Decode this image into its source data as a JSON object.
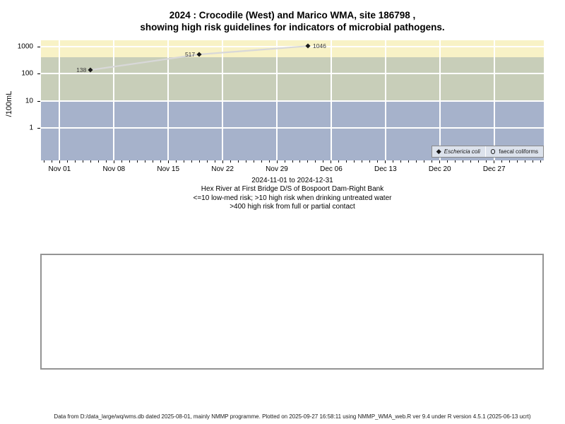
{
  "title": {
    "line1": "2024 : Crocodile (West) and Marico WMA, site 186798 ,",
    "line2": "showing high risk guidelines for indicators of microbial pathogens."
  },
  "chart_data": {
    "type": "line",
    "title": "2024 : Crocodile (West) and Marico WMA, site 186798, showing high risk guidelines for indicators of microbial pathogens.",
    "ylabel": "/100mL",
    "yscale": "log10",
    "ylim": [
      0.065,
      1710
    ],
    "ytick_values": [
      1000,
      100,
      10,
      1
    ],
    "xtick_labels": [
      "Nov 01",
      "Nov 08",
      "Nov 15",
      "Nov 22",
      "Nov 29",
      "Dec 06",
      "Dec 13",
      "Dec 20",
      "Dec 27"
    ],
    "xtick_days": [
      0,
      7,
      14,
      21,
      28,
      35,
      42,
      49,
      56
    ],
    "x_domain_days": [
      -2.4,
      62.4
    ],
    "minor_tick_every_days": 1,
    "grid": "on",
    "grid_color": "#ffffff",
    "risk_bands": [
      {
        "label": "high risk from full or partial contact (>400)",
        "range": [
          400,
          1710
        ],
        "color": "#f8f2c6"
      },
      {
        "label": "high risk when drinking untreated water (>10)",
        "range": [
          10,
          400
        ],
        "color": "#c8ceb9"
      },
      {
        "label": "low-med risk (<=10)",
        "range": [
          0.065,
          10
        ],
        "color": "#a6b2cb"
      }
    ],
    "series": [
      {
        "name": "Eschericia coli",
        "marker": "filled-diamond",
        "marker_color": "#1a1a1a",
        "line_color": "#d8d8d8",
        "points": [
          {
            "day": 4,
            "value": 138,
            "label": "138",
            "label_side": "left"
          },
          {
            "day": 18,
            "value": 517,
            "label": "517",
            "label_side": "left"
          },
          {
            "day": 32,
            "value": 1046,
            "label": "1046",
            "label_side": "right"
          }
        ]
      },
      {
        "name": "faecal coliforms",
        "marker": "open-circle",
        "marker_color": "#1a1a1a",
        "points": []
      }
    ],
    "legend": {
      "position": "bottom-right",
      "items": [
        {
          "marker": "filled-diamond",
          "label": "Eschericia coli",
          "italic": true
        },
        {
          "marker": "open-circle",
          "label": "faecal coliforms",
          "italic": false
        }
      ]
    }
  },
  "caption": {
    "line1": "2024-11-01 to 2024-12-31",
    "line2": "Hex River at First Bridge D/S of Bospoort Dam-Right Bank",
    "line3": "<=10 low-med risk; >10 high risk when drinking untreated water",
    "line4": ">400 high risk from full or partial contact"
  },
  "footer": "Data from D:/data_large/wq/wms.db dated 2025-08-01, mainly NMMP programme. Plotted on 2025-09-27 16:58:11 using NMMP_WMA_web.R ver 9.4 under R version 4.5.1 (2025-06-13 ucrt)"
}
